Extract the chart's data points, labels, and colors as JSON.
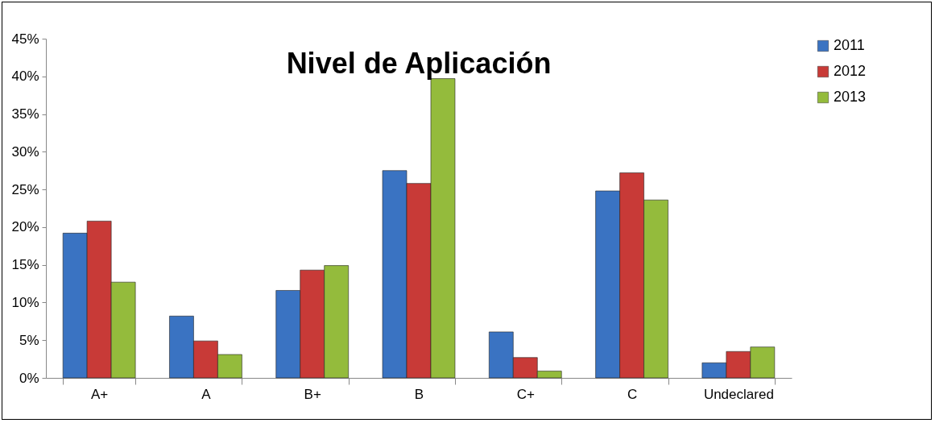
{
  "chart_data": {
    "type": "bar",
    "title": "Nivel de Aplicación",
    "categories": [
      "A+",
      "A",
      "B+",
      "B",
      "C+",
      "C",
      "Undeclared"
    ],
    "series": [
      {
        "name": "2011",
        "color": "#3a73c2",
        "values": [
          19.2,
          8.2,
          11.6,
          27.5,
          6.1,
          24.8,
          2.0
        ]
      },
      {
        "name": "2012",
        "color": "#c83a37",
        "values": [
          20.8,
          4.9,
          14.3,
          25.8,
          2.7,
          27.2,
          3.5
        ]
      },
      {
        "name": "2013",
        "color": "#94bb3c",
        "values": [
          12.7,
          3.1,
          14.9,
          39.7,
          0.9,
          23.6,
          4.1
        ]
      }
    ],
    "ylim": [
      0,
      45
    ],
    "yticks": [
      {
        "value": 0,
        "label": "0%"
      },
      {
        "value": 5,
        "label": "5%"
      },
      {
        "value": 10,
        "label": "10%"
      },
      {
        "value": 15,
        "label": "15%"
      },
      {
        "value": 20,
        "label": "20%"
      },
      {
        "value": 25,
        "label": "25%"
      },
      {
        "value": 30,
        "label": "30%"
      },
      {
        "value": 35,
        "label": "35%"
      },
      {
        "value": 40,
        "label": "40%"
      },
      {
        "value": 45,
        "label": "45%"
      }
    ],
    "grid": false,
    "legend": "right"
  }
}
